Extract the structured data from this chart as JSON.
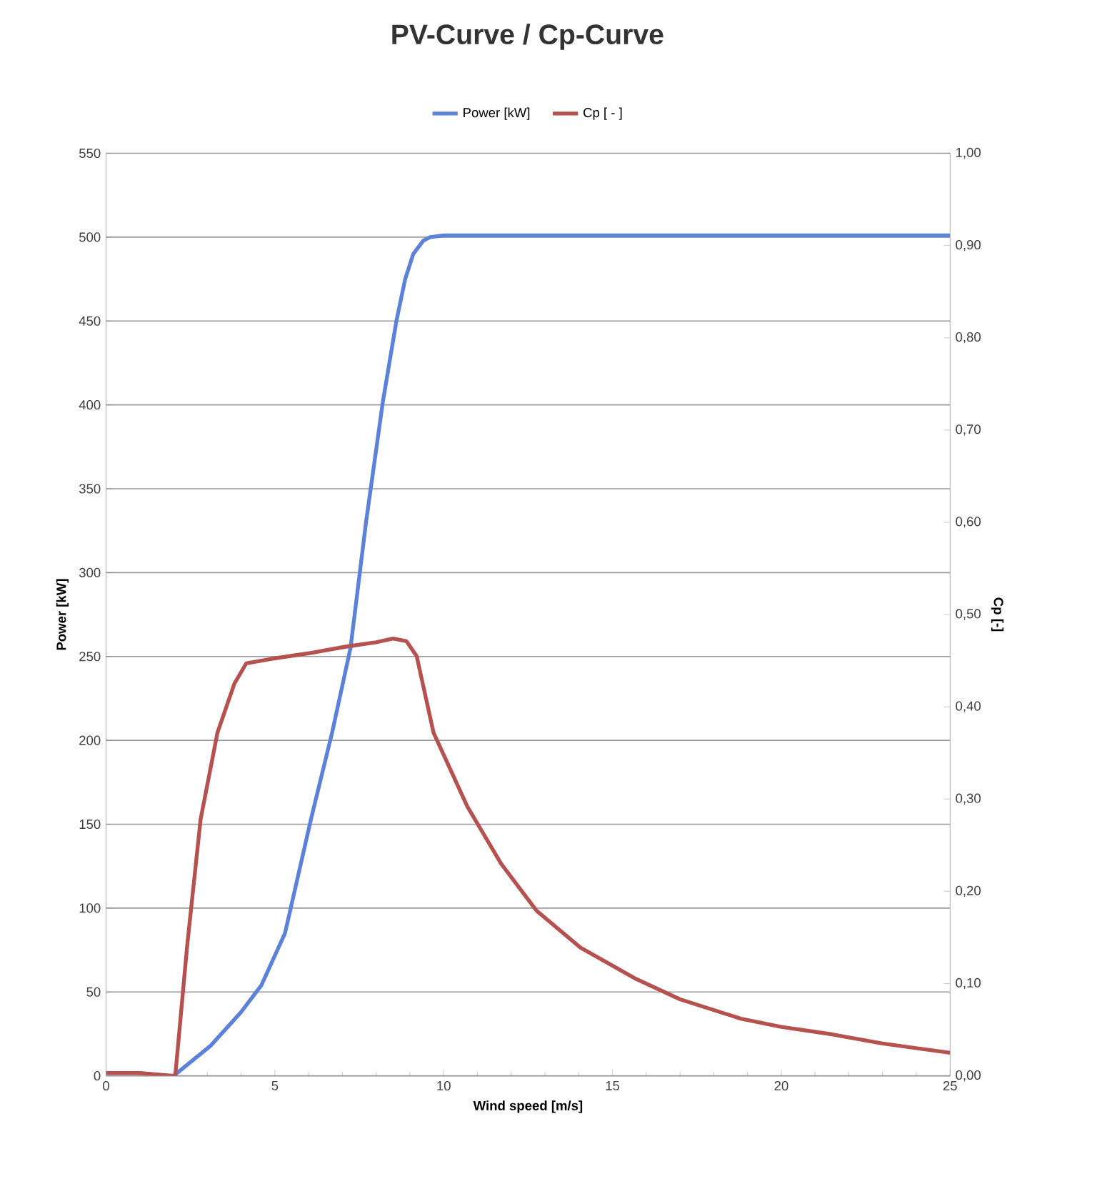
{
  "chart_data": {
    "type": "line",
    "title": "PV-Curve / Cp-Curve",
    "xlabel": "Wind speed [m/s]",
    "ylabel": "Power [kW]",
    "y2label": "Cp [-]",
    "xlim": [
      0,
      25
    ],
    "xticks": [
      0,
      5,
      10,
      15,
      20,
      25
    ],
    "ylim": [
      0,
      550
    ],
    "yticks": [
      0,
      50,
      100,
      150,
      200,
      250,
      300,
      350,
      400,
      450,
      500,
      550
    ],
    "y2lim": [
      0,
      1
    ],
    "y2ticks": [
      {
        "value": 0,
        "label": "0,00"
      },
      {
        "value": 0.1,
        "label": "0,10"
      },
      {
        "value": 0.2,
        "label": "0,20"
      },
      {
        "value": 0.3,
        "label": "0,30"
      },
      {
        "value": 0.4,
        "label": "0,40"
      },
      {
        "value": 0.5,
        "label": "0,50"
      },
      {
        "value": 0.6,
        "label": "0,60"
      },
      {
        "value": 0.7,
        "label": "0,70"
      },
      {
        "value": 0.8,
        "label": "0,80"
      },
      {
        "value": 0.9,
        "label": "0,90"
      },
      {
        "value": 1,
        "label": "1,00"
      }
    ],
    "grid": "y",
    "legend": "top",
    "marker": "none",
    "line_style": "solid",
    "series": [
      {
        "name": "Power [kW]",
        "color": "#5b82d8",
        "x": [
          2,
          3.1,
          4,
          4.6,
          5.3,
          6.07,
          6.7,
          7.24,
          7.7,
          8.2,
          8.6,
          8.86,
          9.1,
          9.4,
          9.6,
          10,
          15,
          20,
          25
        ],
        "values": [
          0,
          18,
          38,
          54,
          85,
          153,
          205,
          255,
          330,
          402,
          450,
          475,
          490,
          498,
          500,
          501,
          501,
          501,
          501
        ]
      },
      {
        "name": "Cp [ - ]",
        "color": "#b5524f",
        "axis": "y2",
        "x": [
          0,
          1,
          2,
          2.05,
          2.4,
          2.8,
          3.3,
          3.8,
          4.15,
          4.9,
          6,
          7.07,
          8,
          8.5,
          8.9,
          9.2,
          9.7,
          10.7,
          11.7,
          12.75,
          14.05,
          15.7,
          17,
          18.8,
          20,
          21.5,
          23,
          25
        ],
        "values": [
          0.003,
          0.003,
          0,
          0,
          0.14,
          0.278,
          0.372,
          0.425,
          0.447,
          0.452,
          0.458,
          0.465,
          0.47,
          0.474,
          0.471,
          0.455,
          0.372,
          0.292,
          0.23,
          0.179,
          0.139,
          0.105,
          0.083,
          0.062,
          0.053,
          0.045,
          0.035,
          0.025
        ]
      }
    ]
  }
}
